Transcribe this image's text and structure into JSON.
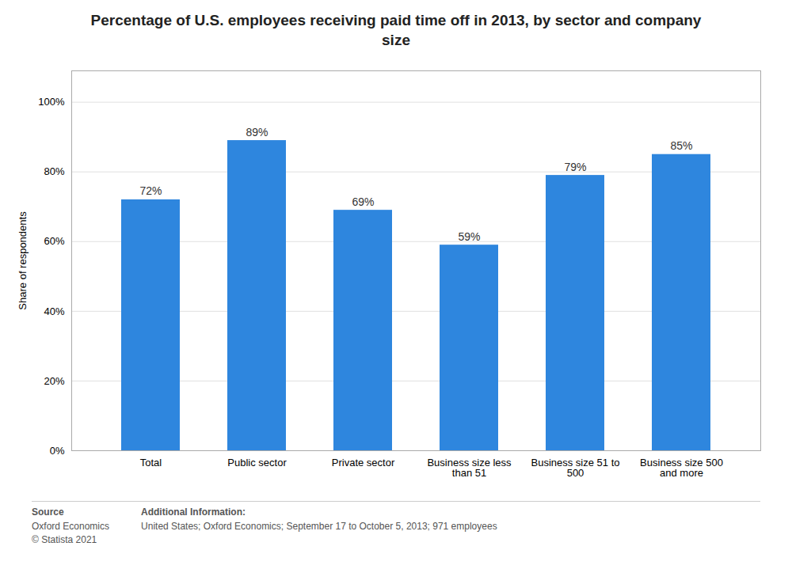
{
  "chart_data": {
    "type": "bar",
    "title": "Percentage of U.S. employees receiving paid time off in 2013, by sector and company\nsize",
    "categories": [
      "Total",
      "Public sector",
      "Private sector",
      "Business size less\nthan 51",
      "Business size 51 to\n500",
      "Business size 500\nand more"
    ],
    "values": [
      0.72,
      0.89,
      0.69,
      0.59,
      0.79,
      0.85
    ],
    "value_labels": [
      "72%",
      "89%",
      "69%",
      "59%",
      "79%",
      "85%"
    ],
    "data_labels": true,
    "color": "#2e86de",
    "ylabel": "Share of respondents",
    "ylim": [
      0,
      1.09
    ],
    "yticks": [
      {
        "value": 0.0,
        "label": "0%"
      },
      {
        "value": 0.2,
        "label": "20%"
      },
      {
        "value": 0.4,
        "label": "40%"
      },
      {
        "value": 0.6,
        "label": "60%"
      },
      {
        "value": 0.8,
        "label": "80%"
      },
      {
        "value": 1.0,
        "label": "100%"
      }
    ],
    "grid": true,
    "footnotes": [
      {
        "label": "Source",
        "text": "Oxford Economics\n© Statista 2021"
      },
      {
        "label": "Additional Information:",
        "text": "United States; Oxford Economics; September 17 to October 5, 2013; 971 employees"
      }
    ]
  }
}
